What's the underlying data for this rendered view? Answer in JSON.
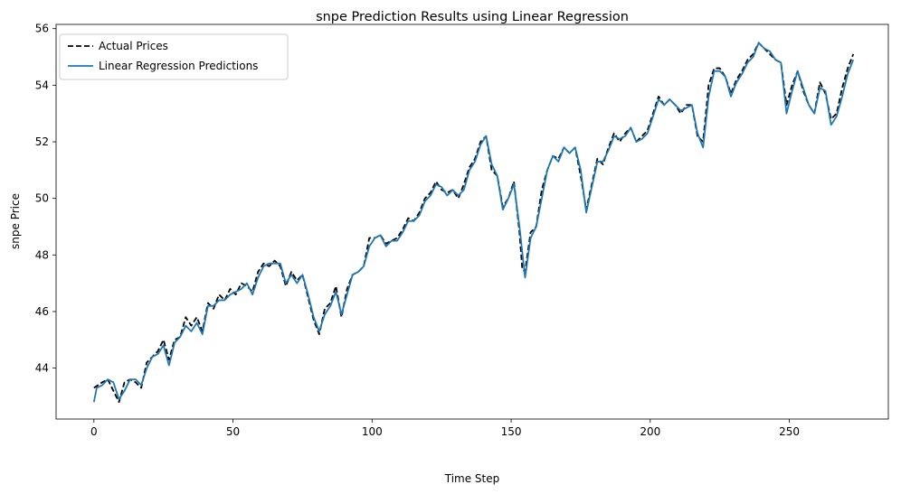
{
  "chart_data": {
    "type": "line",
    "title": "snpe Prediction Results using Linear Regression",
    "xlabel": "Time Step",
    "ylabel": "snpe Price",
    "xlim": [
      -13.6,
      285.6
    ],
    "ylim": [
      42.2,
      56.15
    ],
    "xticks": [
      0,
      50,
      100,
      150,
      200,
      250
    ],
    "yticks": [
      44,
      46,
      48,
      50,
      52,
      54,
      56
    ],
    "grid": false,
    "legend_position": "upper-left",
    "series": [
      {
        "name": "Actual Prices",
        "color": "#000000",
        "style": "dashed",
        "points": [
          [
            0,
            43.3
          ],
          [
            3,
            43.5
          ],
          [
            5,
            43.6
          ],
          [
            7,
            43.2
          ],
          [
            9,
            42.8
          ],
          [
            11,
            43.5
          ],
          [
            13,
            43.6
          ],
          [
            15,
            43.5
          ],
          [
            17,
            43.3
          ],
          [
            19,
            44.2
          ],
          [
            21,
            44.4
          ],
          [
            23,
            44.6
          ],
          [
            25,
            45.0
          ],
          [
            27,
            44.3
          ],
          [
            29,
            45.0
          ],
          [
            31,
            45.1
          ],
          [
            33,
            45.8
          ],
          [
            35,
            45.5
          ],
          [
            37,
            45.8
          ],
          [
            39,
            45.3
          ],
          [
            41,
            46.3
          ],
          [
            43,
            46.1
          ],
          [
            45,
            46.6
          ],
          [
            47,
            46.4
          ],
          [
            49,
            46.8
          ],
          [
            51,
            46.6
          ],
          [
            53,
            47.0
          ],
          [
            55,
            46.9
          ],
          [
            57,
            46.7
          ],
          [
            59,
            47.4
          ],
          [
            61,
            47.7
          ],
          [
            63,
            47.6
          ],
          [
            65,
            47.8
          ],
          [
            67,
            47.6
          ],
          [
            69,
            46.9
          ],
          [
            71,
            47.4
          ],
          [
            73,
            47.1
          ],
          [
            75,
            47.3
          ],
          [
            77,
            46.5
          ],
          [
            79,
            45.7
          ],
          [
            81,
            45.2
          ],
          [
            83,
            46.1
          ],
          [
            85,
            46.3
          ],
          [
            87,
            46.9
          ],
          [
            89,
            45.8
          ],
          [
            91,
            46.8
          ],
          [
            93,
            47.3
          ],
          [
            95,
            47.4
          ],
          [
            97,
            47.6
          ],
          [
            99,
            48.6
          ],
          [
            101,
            48.6
          ],
          [
            103,
            48.7
          ],
          [
            105,
            48.4
          ],
          [
            107,
            48.5
          ],
          [
            109,
            48.6
          ],
          [
            111,
            48.9
          ],
          [
            113,
            49.3
          ],
          [
            115,
            49.2
          ],
          [
            117,
            49.5
          ],
          [
            119,
            50.0
          ],
          [
            121,
            50.2
          ],
          [
            123,
            50.6
          ],
          [
            125,
            50.3
          ],
          [
            127,
            50.2
          ],
          [
            129,
            50.3
          ],
          [
            131,
            50.0
          ],
          [
            133,
            50.5
          ],
          [
            135,
            51.1
          ],
          [
            137,
            51.4
          ],
          [
            139,
            52.0
          ],
          [
            141,
            52.2
          ],
          [
            143,
            51.0
          ],
          [
            145,
            50.8
          ],
          [
            147,
            49.7
          ],
          [
            149,
            50.0
          ],
          [
            151,
            50.6
          ],
          [
            153,
            48.8
          ],
          [
            154,
            47.5
          ],
          [
            155,
            47.4
          ],
          [
            157,
            48.8
          ],
          [
            159,
            49.0
          ],
          [
            161,
            50.3
          ],
          [
            163,
            51.0
          ],
          [
            165,
            51.5
          ],
          [
            167,
            51.4
          ],
          [
            169,
            51.8
          ],
          [
            171,
            51.6
          ],
          [
            173,
            51.8
          ],
          [
            175,
            50.8
          ],
          [
            177,
            49.6
          ],
          [
            179,
            50.5
          ],
          [
            181,
            51.4
          ],
          [
            183,
            51.2
          ],
          [
            185,
            51.8
          ],
          [
            187,
            52.3
          ],
          [
            189,
            52.0
          ],
          [
            191,
            52.3
          ],
          [
            193,
            52.5
          ],
          [
            195,
            52.0
          ],
          [
            197,
            52.2
          ],
          [
            199,
            52.4
          ],
          [
            201,
            53.0
          ],
          [
            203,
            53.6
          ],
          [
            205,
            53.3
          ],
          [
            207,
            53.5
          ],
          [
            209,
            53.3
          ],
          [
            211,
            53.0
          ],
          [
            213,
            53.3
          ],
          [
            215,
            53.3
          ],
          [
            217,
            52.2
          ],
          [
            219,
            52.0
          ],
          [
            221,
            54.0
          ],
          [
            223,
            54.6
          ],
          [
            225,
            54.6
          ],
          [
            227,
            54.3
          ],
          [
            229,
            53.7
          ],
          [
            231,
            54.2
          ],
          [
            233,
            54.5
          ],
          [
            235,
            54.9
          ],
          [
            237,
            55.1
          ],
          [
            239,
            55.5
          ],
          [
            241,
            55.3
          ],
          [
            243,
            55.1
          ],
          [
            245,
            54.9
          ],
          [
            247,
            54.8
          ],
          [
            249,
            53.3
          ],
          [
            251,
            54.0
          ],
          [
            253,
            54.5
          ],
          [
            255,
            53.8
          ],
          [
            257,
            53.3
          ],
          [
            259,
            53.0
          ],
          [
            261,
            54.1
          ],
          [
            263,
            53.7
          ],
          [
            265,
            52.8
          ],
          [
            267,
            53.0
          ],
          [
            269,
            53.9
          ],
          [
            271,
            54.6
          ],
          [
            273,
            55.1
          ]
        ]
      },
      {
        "name": "Linear Regression Predictions",
        "color": "#1f77b4",
        "style": "solid",
        "points": [
          [
            0,
            42.8
          ],
          [
            1,
            43.3
          ],
          [
            3,
            43.4
          ],
          [
            5,
            43.6
          ],
          [
            7,
            43.5
          ],
          [
            9,
            42.9
          ],
          [
            11,
            43.2
          ],
          [
            13,
            43.6
          ],
          [
            15,
            43.6
          ],
          [
            17,
            43.4
          ],
          [
            19,
            44.0
          ],
          [
            21,
            44.4
          ],
          [
            23,
            44.5
          ],
          [
            25,
            44.8
          ],
          [
            27,
            44.1
          ],
          [
            29,
            44.9
          ],
          [
            31,
            45.1
          ],
          [
            33,
            45.5
          ],
          [
            35,
            45.3
          ],
          [
            37,
            45.6
          ],
          [
            39,
            45.2
          ],
          [
            41,
            46.2
          ],
          [
            43,
            46.2
          ],
          [
            45,
            46.4
          ],
          [
            47,
            46.4
          ],
          [
            49,
            46.6
          ],
          [
            51,
            46.7
          ],
          [
            53,
            46.8
          ],
          [
            55,
            47.0
          ],
          [
            57,
            46.6
          ],
          [
            59,
            47.2
          ],
          [
            61,
            47.6
          ],
          [
            63,
            47.7
          ],
          [
            65,
            47.7
          ],
          [
            67,
            47.7
          ],
          [
            69,
            47.0
          ],
          [
            71,
            47.3
          ],
          [
            73,
            47.0
          ],
          [
            75,
            47.3
          ],
          [
            77,
            46.6
          ],
          [
            79,
            45.8
          ],
          [
            81,
            45.3
          ],
          [
            83,
            45.9
          ],
          [
            85,
            46.2
          ],
          [
            87,
            46.7
          ],
          [
            89,
            45.9
          ],
          [
            91,
            46.6
          ],
          [
            93,
            47.3
          ],
          [
            95,
            47.4
          ],
          [
            97,
            47.6
          ],
          [
            99,
            48.3
          ],
          [
            101,
            48.6
          ],
          [
            103,
            48.7
          ],
          [
            105,
            48.3
          ],
          [
            107,
            48.5
          ],
          [
            109,
            48.5
          ],
          [
            111,
            48.8
          ],
          [
            113,
            49.2
          ],
          [
            115,
            49.2
          ],
          [
            117,
            49.4
          ],
          [
            119,
            49.9
          ],
          [
            121,
            50.1
          ],
          [
            123,
            50.5
          ],
          [
            125,
            50.4
          ],
          [
            127,
            50.1
          ],
          [
            129,
            50.3
          ],
          [
            131,
            50.1
          ],
          [
            133,
            50.3
          ],
          [
            135,
            51.0
          ],
          [
            137,
            51.3
          ],
          [
            139,
            51.9
          ],
          [
            141,
            52.2
          ],
          [
            143,
            51.2
          ],
          [
            145,
            50.8
          ],
          [
            147,
            49.6
          ],
          [
            149,
            50.0
          ],
          [
            151,
            50.5
          ],
          [
            153,
            49.0
          ],
          [
            155,
            47.2
          ],
          [
            157,
            48.6
          ],
          [
            159,
            49.0
          ],
          [
            161,
            50.0
          ],
          [
            163,
            51.0
          ],
          [
            165,
            51.5
          ],
          [
            167,
            51.3
          ],
          [
            169,
            51.8
          ],
          [
            171,
            51.6
          ],
          [
            173,
            51.8
          ],
          [
            175,
            51.0
          ],
          [
            177,
            49.5
          ],
          [
            179,
            50.4
          ],
          [
            181,
            51.3
          ],
          [
            183,
            51.3
          ],
          [
            185,
            51.7
          ],
          [
            187,
            52.2
          ],
          [
            189,
            52.1
          ],
          [
            191,
            52.2
          ],
          [
            193,
            52.5
          ],
          [
            195,
            52.0
          ],
          [
            197,
            52.1
          ],
          [
            199,
            52.3
          ],
          [
            201,
            52.9
          ],
          [
            203,
            53.5
          ],
          [
            205,
            53.3
          ],
          [
            207,
            53.5
          ],
          [
            209,
            53.3
          ],
          [
            211,
            53.1
          ],
          [
            213,
            53.2
          ],
          [
            215,
            53.3
          ],
          [
            217,
            52.3
          ],
          [
            219,
            51.8
          ],
          [
            221,
            53.6
          ],
          [
            223,
            54.5
          ],
          [
            225,
            54.5
          ],
          [
            227,
            54.3
          ],
          [
            229,
            53.6
          ],
          [
            231,
            54.1
          ],
          [
            233,
            54.4
          ],
          [
            235,
            54.8
          ],
          [
            237,
            55.0
          ],
          [
            239,
            55.5
          ],
          [
            241,
            55.3
          ],
          [
            243,
            55.2
          ],
          [
            245,
            54.9
          ],
          [
            247,
            54.8
          ],
          [
            249,
            53.0
          ],
          [
            251,
            53.8
          ],
          [
            253,
            54.5
          ],
          [
            255,
            53.9
          ],
          [
            257,
            53.3
          ],
          [
            259,
            53.0
          ],
          [
            261,
            53.9
          ],
          [
            263,
            53.8
          ],
          [
            265,
            52.6
          ],
          [
            267,
            52.9
          ],
          [
            269,
            53.6
          ],
          [
            271,
            54.4
          ],
          [
            273,
            54.9
          ]
        ]
      }
    ]
  }
}
